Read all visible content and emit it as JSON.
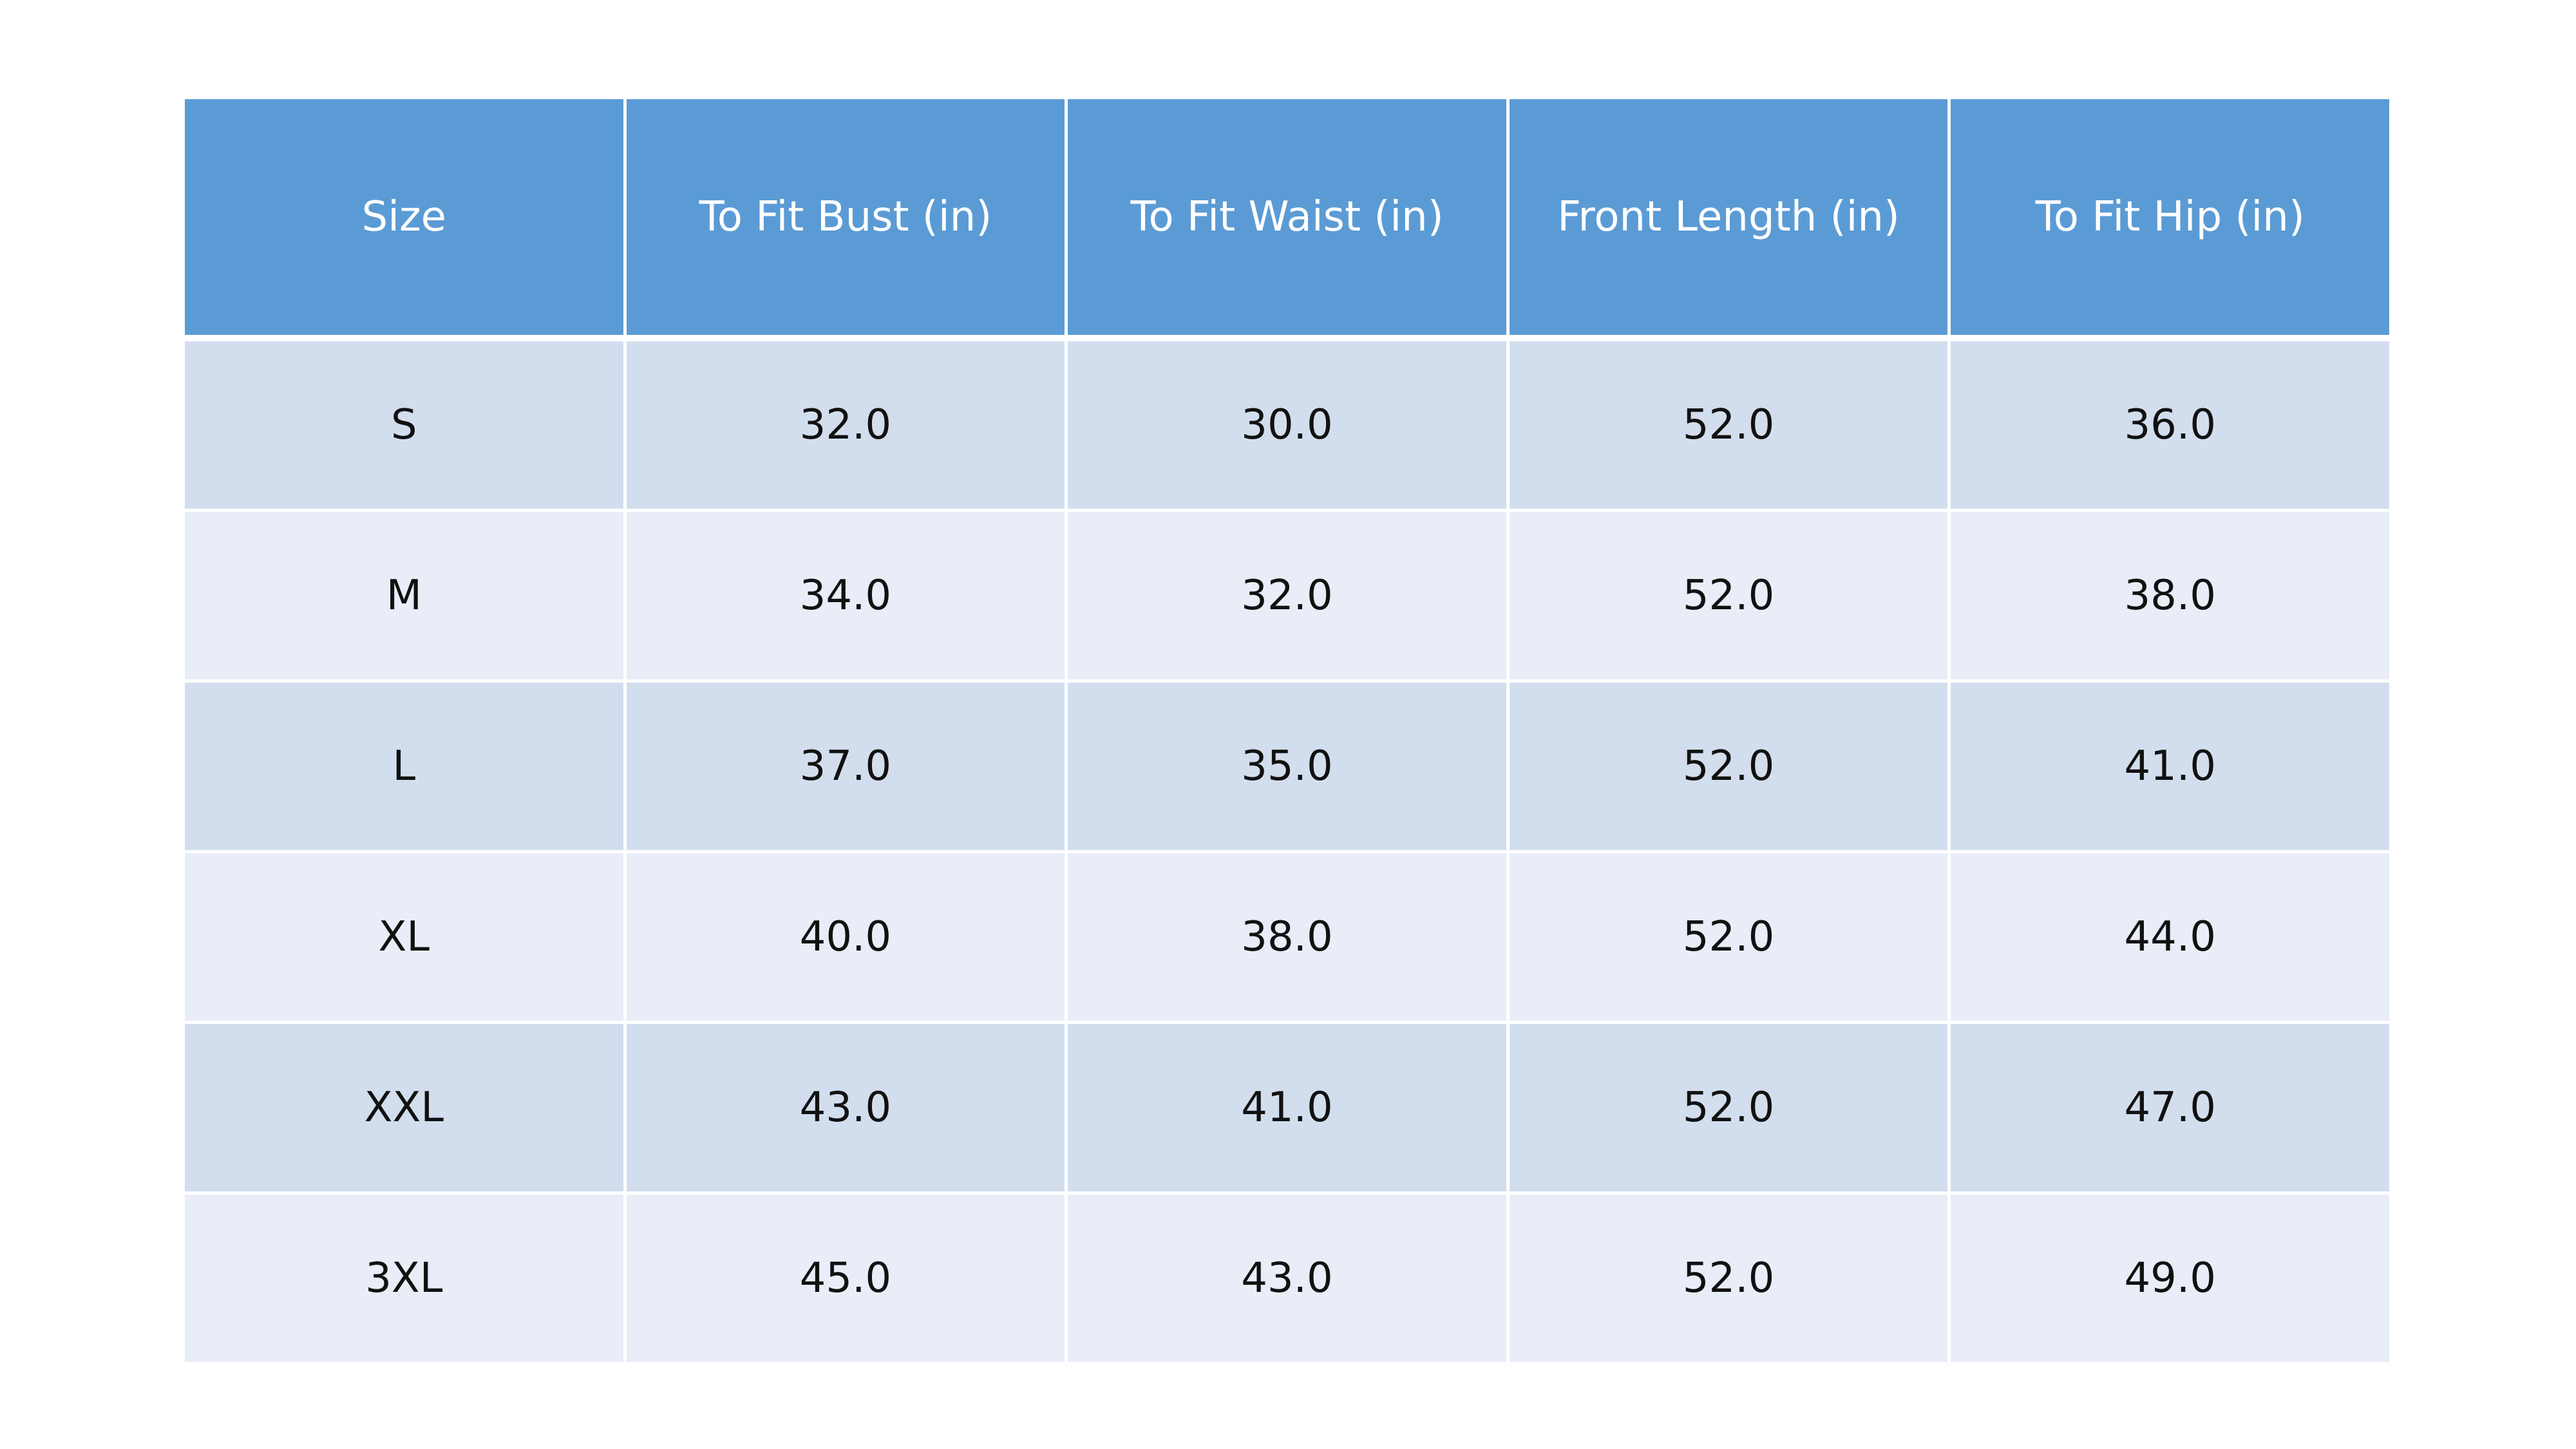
{
  "table": {
    "headers": [
      "Size",
      "To Fit Bust (in)",
      "To Fit Waist (in)",
      "Front Length (in)",
      "To Fit Hip (in)"
    ],
    "rows": [
      [
        "S",
        "32.0",
        "30.0",
        "52.0",
        "36.0"
      ],
      [
        "M",
        "34.0",
        "32.0",
        "52.0",
        "38.0"
      ],
      [
        "L",
        "37.0",
        "35.0",
        "52.0",
        "41.0"
      ],
      [
        "XL",
        "40.0",
        "38.0",
        "52.0",
        "44.0"
      ],
      [
        "XXL",
        "43.0",
        "41.0",
        "52.0",
        "47.0"
      ],
      [
        "3XL",
        "45.0",
        "43.0",
        "52.0",
        "49.0"
      ]
    ]
  },
  "colors": {
    "header_bg": "#5b9bd5",
    "row_odd_bg": "#d2deee",
    "row_even_bg": "#e9edf7"
  }
}
